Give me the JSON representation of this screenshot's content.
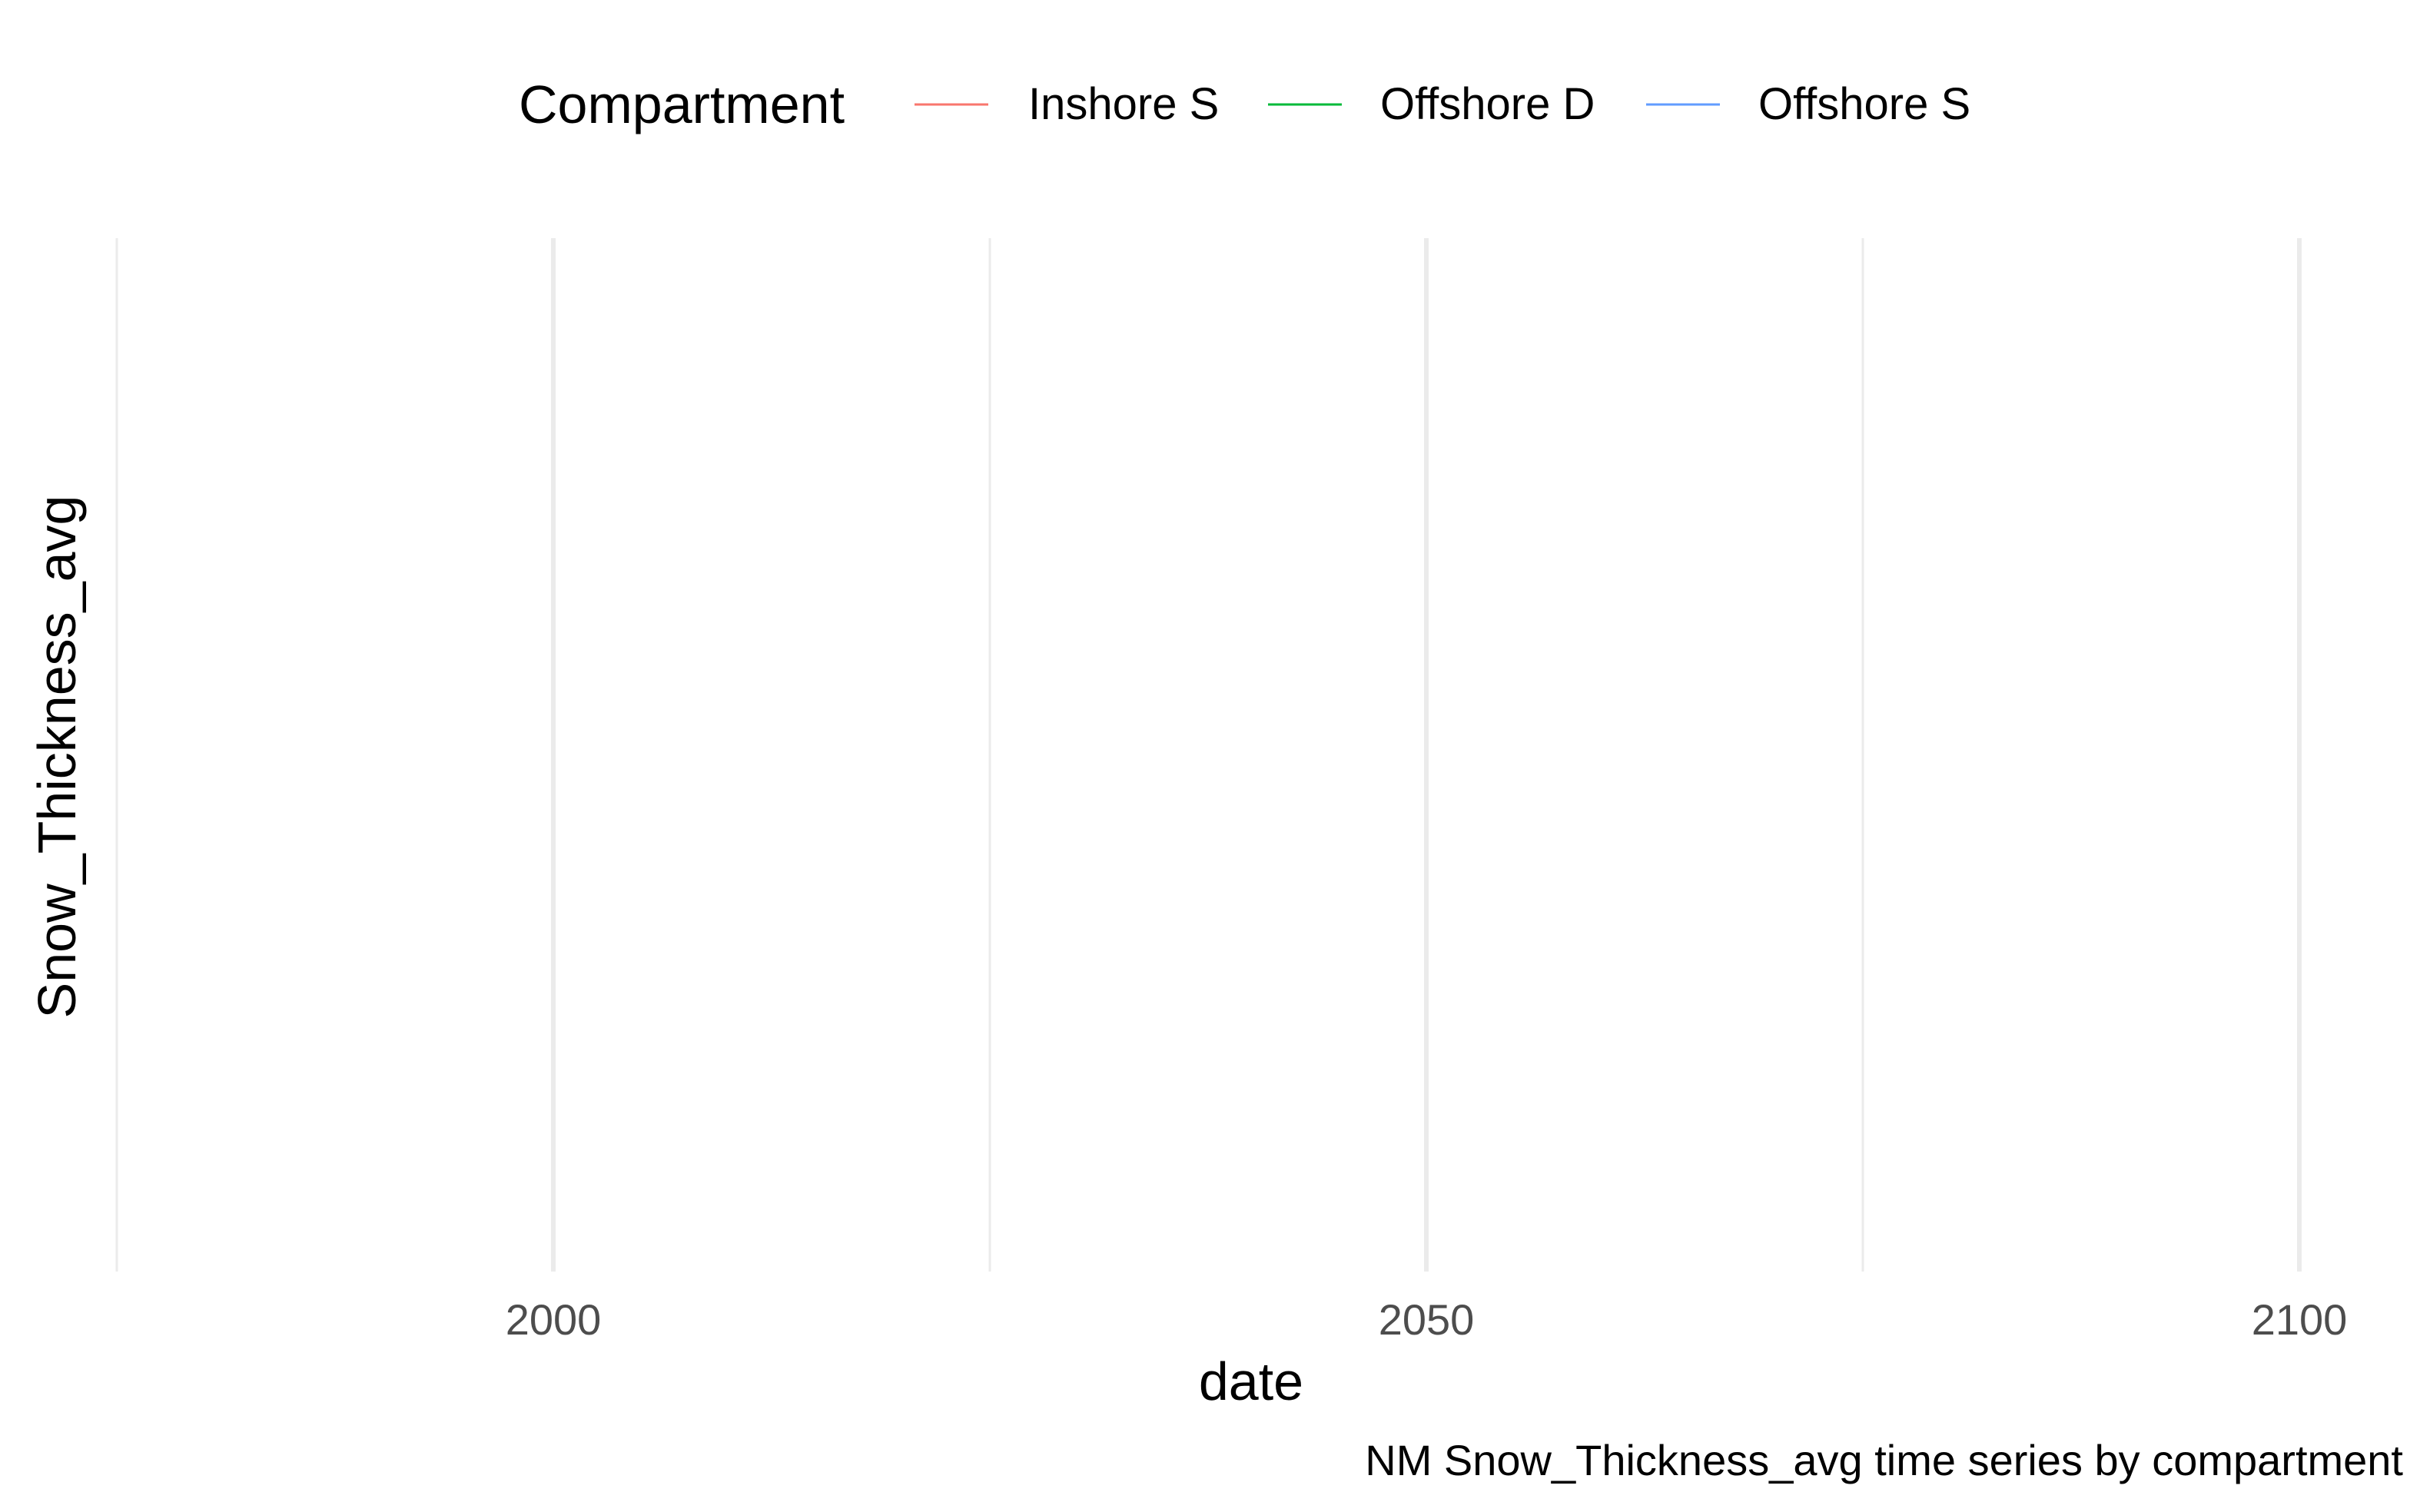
{
  "chart_data": {
    "type": "line",
    "caption": "NM Snow_Thickness_avg time series by compartment",
    "xlabel": "date",
    "ylabel": "Snow_Thickness_avg",
    "x_ticks": [
      2000,
      2050,
      2100
    ],
    "x_minor_ticks": [
      1975,
      2025,
      2075
    ],
    "xlim": [
      1975,
      2100
    ],
    "grid": "vertical",
    "legend": {
      "position": "top",
      "title": "Compartment",
      "entries": [
        "Inshore S",
        "Offshore D",
        "Offshore S"
      ]
    },
    "series": [
      {
        "name": "Inshore S",
        "color": "#F8766D",
        "values": []
      },
      {
        "name": "Offshore D",
        "color": "#00BA38",
        "values": []
      },
      {
        "name": "Offshore S",
        "color": "#619CFF",
        "values": []
      }
    ]
  }
}
